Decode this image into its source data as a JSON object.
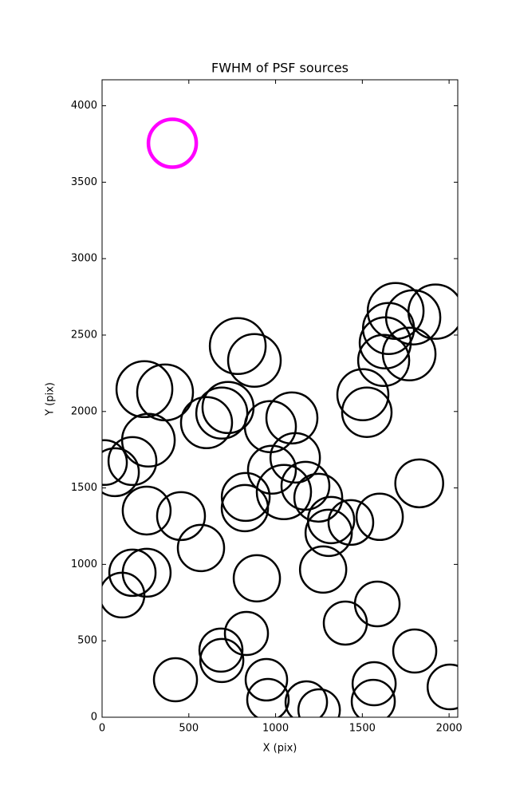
{
  "chart_data": {
    "type": "scatter",
    "title": "FWHM of PSF sources",
    "xlabel": "X (pix)",
    "ylabel": "Y (pix)",
    "xlim": [
      0,
      2050
    ],
    "ylim": [
      0,
      4170
    ],
    "xticks": [
      0,
      500,
      1000,
      1500,
      2000
    ],
    "yticks": [
      0,
      500,
      1000,
      1500,
      2000,
      2500,
      3000,
      3500,
      4000
    ],
    "series": [
      {
        "color": "#000000",
        "line_width": 2.5,
        "x": [
          14,
          74,
          175,
          267,
          244,
          363,
          257,
          455,
          570,
          175,
          257,
          115,
          602,
          690,
          726,
          782,
          878,
          970,
          1094,
          979,
          1113,
          828,
          823,
          1048,
          1172,
          1246,
          1306,
          1320,
          1434,
          1600,
          1828,
          892,
          1274,
          832,
          685,
          690,
          423,
          947,
          956,
          1177,
          1251,
          1402,
          1586,
          1568,
          1563,
          1802,
          2005,
          1503,
          1526,
          1623,
          1632,
          1651,
          1692,
          1770,
          1793,
          1922
        ],
        "values": [
          1666,
          1603,
          1676,
          1812,
          2146,
          2125,
          1352,
          1316,
          1107,
          945,
          945,
          799,
          1927,
          1990,
          2026,
          2428,
          2334,
          1901,
          1958,
          1619,
          1697,
          1441,
          1368,
          1473,
          1514,
          1436,
          1206,
          1290,
          1274,
          1311,
          1530,
          909,
          966,
          548,
          439,
          371,
          245,
          245,
          115,
          99,
          47,
          616,
          741,
          219,
          104,
          433,
          198,
          2110,
          1995,
          2334,
          2449,
          2543,
          2658,
          2376,
          2616,
          2653
        ],
        "sizes": [
          56,
          60,
          60,
          66,
          70,
          70,
          60,
          60,
          58,
          58,
          60,
          56,
          64,
          64,
          64,
          70,
          66,
          64,
          64,
          60,
          62,
          60,
          58,
          68,
          60,
          60,
          58,
          58,
          56,
          58,
          60,
          58,
          58,
          54,
          54,
          54,
          54,
          52,
          52,
          52,
          52,
          54,
          56,
          54,
          54,
          54,
          56,
          64,
          62,
          64,
          64,
          64,
          70,
          66,
          68,
          68
        ]
      },
      {
        "color": "#ff00ff",
        "line_width": 4.5,
        "x": [
          405
        ],
        "values": [
          3755
        ],
        "sizes": [
          60
        ]
      }
    ]
  }
}
